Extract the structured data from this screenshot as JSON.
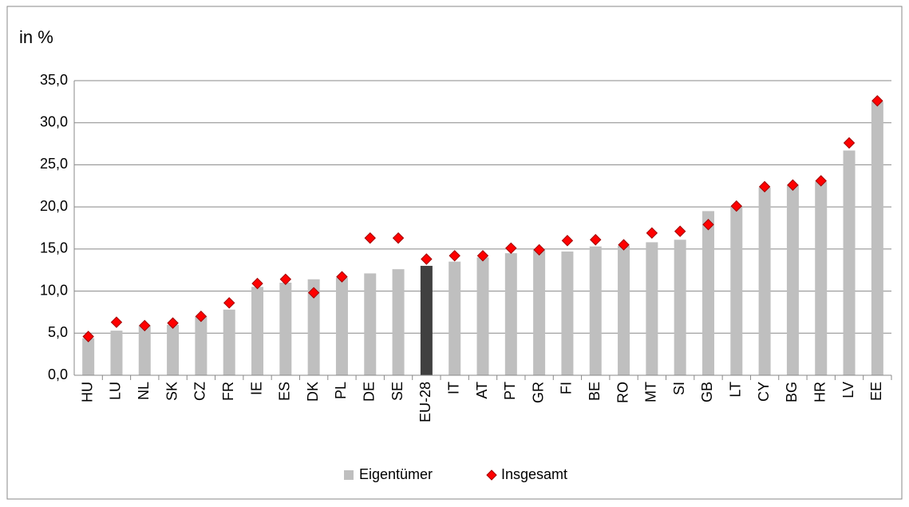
{
  "chart_data": {
    "type": "bar-marker",
    "y_label": "in %",
    "categories": [
      "HU",
      "LU",
      "NL",
      "SK",
      "CZ",
      "FR",
      "IE",
      "ES",
      "DK",
      "PL",
      "DE",
      "SE",
      "EU-28",
      "IT",
      "AT",
      "PT",
      "GR",
      "FI",
      "BE",
      "RO",
      "MT",
      "SI",
      "GB",
      "LT",
      "CY",
      "BG",
      "HR",
      "LV",
      "EE"
    ],
    "series": [
      {
        "name": "Eigentümer",
        "color": "#bfbfbf",
        "colors": [
          "#bfbfbf",
          "#bfbfbf",
          "#bfbfbf",
          "#bfbfbf",
          "#bfbfbf",
          "#bfbfbf",
          "#bfbfbf",
          "#bfbfbf",
          "#bfbfbf",
          "#bfbfbf",
          "#bfbfbf",
          "#bfbfbf",
          "#404040",
          "#bfbfbf",
          "#bfbfbf",
          "#bfbfbf",
          "#bfbfbf",
          "#bfbfbf",
          "#bfbfbf",
          "#bfbfbf",
          "#bfbfbf",
          "#bfbfbf",
          "#bfbfbf",
          "#bfbfbf",
          "#bfbfbf",
          "#bfbfbf",
          "#bfbfbf",
          "#bfbfbf",
          "#bfbfbf"
        ],
        "values": [
          4.4,
          5.3,
          5.9,
          6.0,
          7.0,
          7.8,
          10.5,
          11.0,
          11.4,
          11.6,
          12.1,
          12.6,
          13.0,
          13.5,
          14.0,
          14.5,
          14.9,
          14.7,
          15.3,
          15.4,
          15.8,
          16.1,
          19.5,
          20.0,
          22.3,
          22.6,
          23.0,
          26.7,
          32.5
        ]
      },
      {
        "name": "Insgesamt",
        "color": "#ff0000",
        "values": [
          4.6,
          6.3,
          5.9,
          6.2,
          7.0,
          8.6,
          10.9,
          11.4,
          9.8,
          11.7,
          16.3,
          16.3,
          13.8,
          14.2,
          14.2,
          15.1,
          14.9,
          16.0,
          16.1,
          15.5,
          16.9,
          17.1,
          17.9,
          20.1,
          22.4,
          22.6,
          23.1,
          27.6,
          32.6
        ]
      }
    ],
    "ylim": [
      0,
      35
    ],
    "yticks": [
      {
        "value": 0,
        "label": "0,0"
      },
      {
        "value": 5,
        "label": "5,0"
      },
      {
        "value": 10,
        "label": "10,0"
      },
      {
        "value": 15,
        "label": "15,0"
      },
      {
        "value": 20,
        "label": "20,0"
      },
      {
        "value": 25,
        "label": "25,0"
      },
      {
        "value": 30,
        "label": "30,0"
      },
      {
        "value": 35,
        "label": "35,0"
      }
    ],
    "grid": true,
    "legend": "bottom"
  }
}
